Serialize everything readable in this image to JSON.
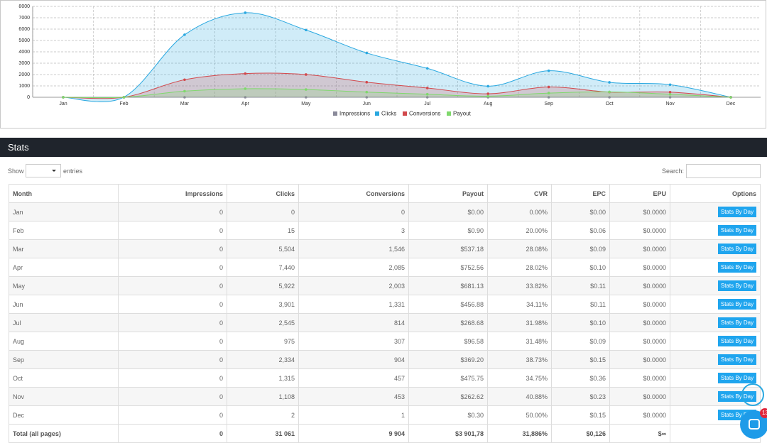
{
  "chart_data": {
    "type": "area",
    "categories": [
      "Jan",
      "Feb",
      "Mar",
      "Apr",
      "May",
      "Jun",
      "Jul",
      "Aug",
      "Sep",
      "Oct",
      "Nov",
      "Dec"
    ],
    "series": [
      {
        "name": "Impressions",
        "color": "#8a8a9a",
        "values": [
          0,
          0,
          0,
          0,
          0,
          0,
          0,
          0,
          0,
          0,
          0,
          0
        ]
      },
      {
        "name": "Clicks",
        "color": "#2aa8e0",
        "values": [
          0,
          15,
          5504,
          7440,
          5922,
          3901,
          2545,
          975,
          2334,
          1315,
          1108,
          2
        ]
      },
      {
        "name": "Conversions",
        "color": "#d2494d",
        "values": [
          0,
          3,
          1546,
          2085,
          2003,
          1331,
          814,
          307,
          904,
          457,
          453,
          1
        ]
      },
      {
        "name": "Payout",
        "color": "#7fd86c",
        "values": [
          0,
          0.9,
          537.18,
          752.56,
          681.13,
          456.88,
          268.68,
          96.58,
          369.2,
          475.75,
          262.62,
          0.3
        ]
      }
    ],
    "ylim": [
      0,
      8000
    ],
    "yticks": [
      0,
      1000,
      2000,
      3000,
      4000,
      5000,
      6000,
      7000,
      8000
    ],
    "grid": true,
    "legend": "bottom"
  },
  "stats": {
    "title": "Stats",
    "show_label": "Show",
    "entries_label": "entries",
    "search_label": "Search:",
    "table": {
      "columns": [
        "Month",
        "Impressions",
        "Clicks",
        "Conversions",
        "Payout",
        "CVR",
        "EPC",
        "EPU",
        "Options"
      ],
      "action_label": "Stats By Day",
      "rows": [
        [
          "Jan",
          "0",
          "0",
          "0",
          "$0.00",
          "0.00%",
          "$0.00",
          "$0.0000"
        ],
        [
          "Feb",
          "0",
          "15",
          "3",
          "$0.90",
          "20.00%",
          "$0.06",
          "$0.0000"
        ],
        [
          "Mar",
          "0",
          "5,504",
          "1,546",
          "$537.18",
          "28.08%",
          "$0.09",
          "$0.0000"
        ],
        [
          "Apr",
          "0",
          "7,440",
          "2,085",
          "$752.56",
          "28.02%",
          "$0.10",
          "$0.0000"
        ],
        [
          "May",
          "0",
          "5,922",
          "2,003",
          "$681.13",
          "33.82%",
          "$0.11",
          "$0.0000"
        ],
        [
          "Jun",
          "0",
          "3,901",
          "1,331",
          "$456.88",
          "34.11%",
          "$0.11",
          "$0.0000"
        ],
        [
          "Jul",
          "0",
          "2,545",
          "814",
          "$268.68",
          "31.98%",
          "$0.10",
          "$0.0000"
        ],
        [
          "Aug",
          "0",
          "975",
          "307",
          "$96.58",
          "31.48%",
          "$0.09",
          "$0.0000"
        ],
        [
          "Sep",
          "0",
          "2,334",
          "904",
          "$369.20",
          "38.73%",
          "$0.15",
          "$0.0000"
        ],
        [
          "Oct",
          "0",
          "1,315",
          "457",
          "$475.75",
          "34.75%",
          "$0.36",
          "$0.0000"
        ],
        [
          "Nov",
          "0",
          "1,108",
          "453",
          "$262.62",
          "40.88%",
          "$0.23",
          "$0.0000"
        ],
        [
          "Dec",
          "0",
          "2",
          "1",
          "$0.30",
          "50.00%",
          "$0.15",
          "$0.0000"
        ]
      ],
      "total": [
        "Total (all pages)",
        "0",
        "31 061",
        "9 904",
        "$3 901,78",
        "31,886%",
        "$0,126",
        "$∞"
      ]
    }
  },
  "chat_badge": "13"
}
